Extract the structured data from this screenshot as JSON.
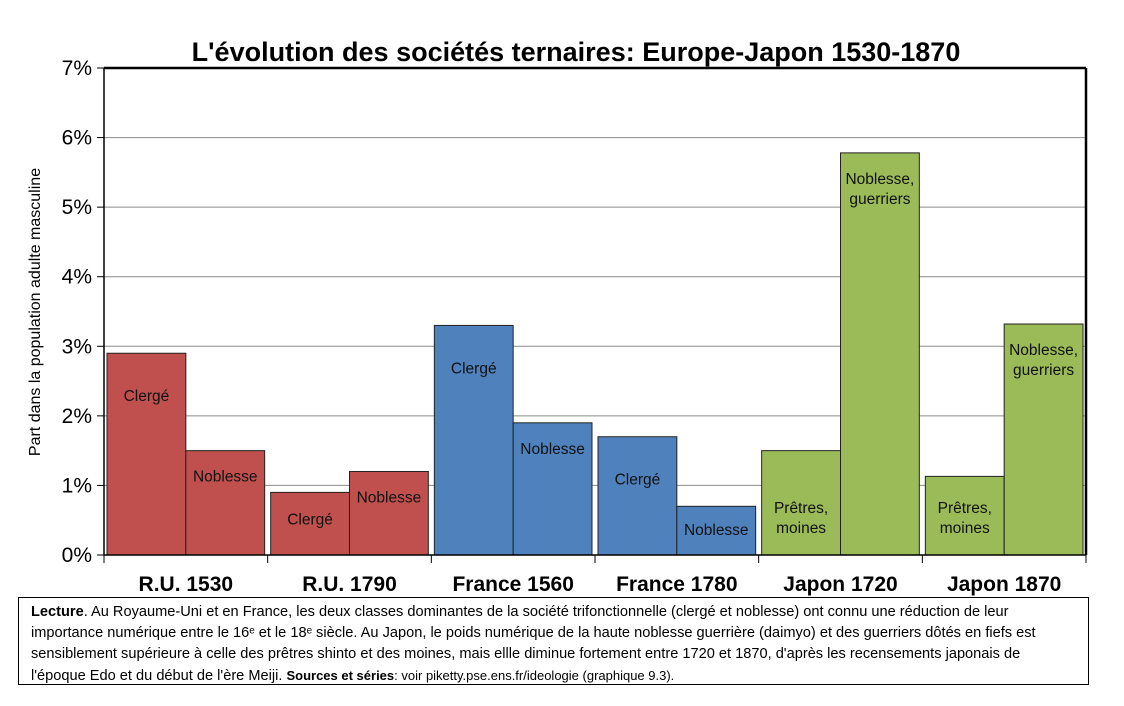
{
  "chart_data": {
    "type": "bar",
    "title": "L'évolution des sociétés ternaires: Europe-Japon 1530-1870",
    "ylabel": "Part dans la population adulte masculine",
    "ylim": [
      0,
      7
    ],
    "yticks": [
      "0%",
      "1%",
      "2%",
      "3%",
      "4%",
      "5%",
      "6%",
      "7%"
    ],
    "grid": true,
    "unit": "%",
    "groups": [
      {
        "label": "R.U. 1530",
        "color": "#c0504d",
        "bars": [
          {
            "label": "Clergé",
            "value": 2.9
          },
          {
            "label": "Noblesse",
            "value": 1.5
          }
        ]
      },
      {
        "label": "R.U. 1790",
        "color": "#c0504d",
        "bars": [
          {
            "label": "Clergé",
            "value": 0.9
          },
          {
            "label": "Noblesse",
            "value": 1.2
          }
        ]
      },
      {
        "label": "France 1560",
        "color": "#4f81bd",
        "bars": [
          {
            "label": "Clergé",
            "value": 3.3
          },
          {
            "label": "Noblesse",
            "value": 1.9
          }
        ]
      },
      {
        "label": "France 1780",
        "color": "#4f81bd",
        "bars": [
          {
            "label": "Clergé",
            "value": 1.7
          },
          {
            "label": "Noblesse",
            "value": 0.7
          }
        ]
      },
      {
        "label": "Japon 1720",
        "color": "#9bbb59",
        "bars": [
          {
            "label": "Prêtres, moines",
            "value": 1.5
          },
          {
            "label": "Noblesse, guerriers",
            "value": 5.78
          }
        ]
      },
      {
        "label": "Japon 1870",
        "color": "#9bbb59",
        "bars": [
          {
            "label": "Prêtres, moines",
            "value": 1.13
          },
          {
            "label": "Noblesse, guerriers",
            "value": 3.32
          }
        ]
      }
    ]
  },
  "note": {
    "lead": "Lecture",
    "body": ". Au Royaume-Uni et en France, les deux classes dominantes de la société trifonctionnelle (clergé et noblesse) ont connu une réduction de leur importance numérique entre le 16ᵉ et le 18ᵉ siècle. Au Japon, le poids numérique de la haute noblesse guerrière (daimyo) et des guerriers dôtés en fiefs est sensiblement supérieure à celle des prêtres shinto et des moines, mais ellle diminue fortement entre 1720 et 1870, d'après les recensements japonais de l'époque Edo et du début de l'ère Meiji. ",
    "sources_lead": "Sources et séries",
    "sources_body": ": voir piketty.pse.ens.fr/ideologie (graphique 9.3)."
  }
}
